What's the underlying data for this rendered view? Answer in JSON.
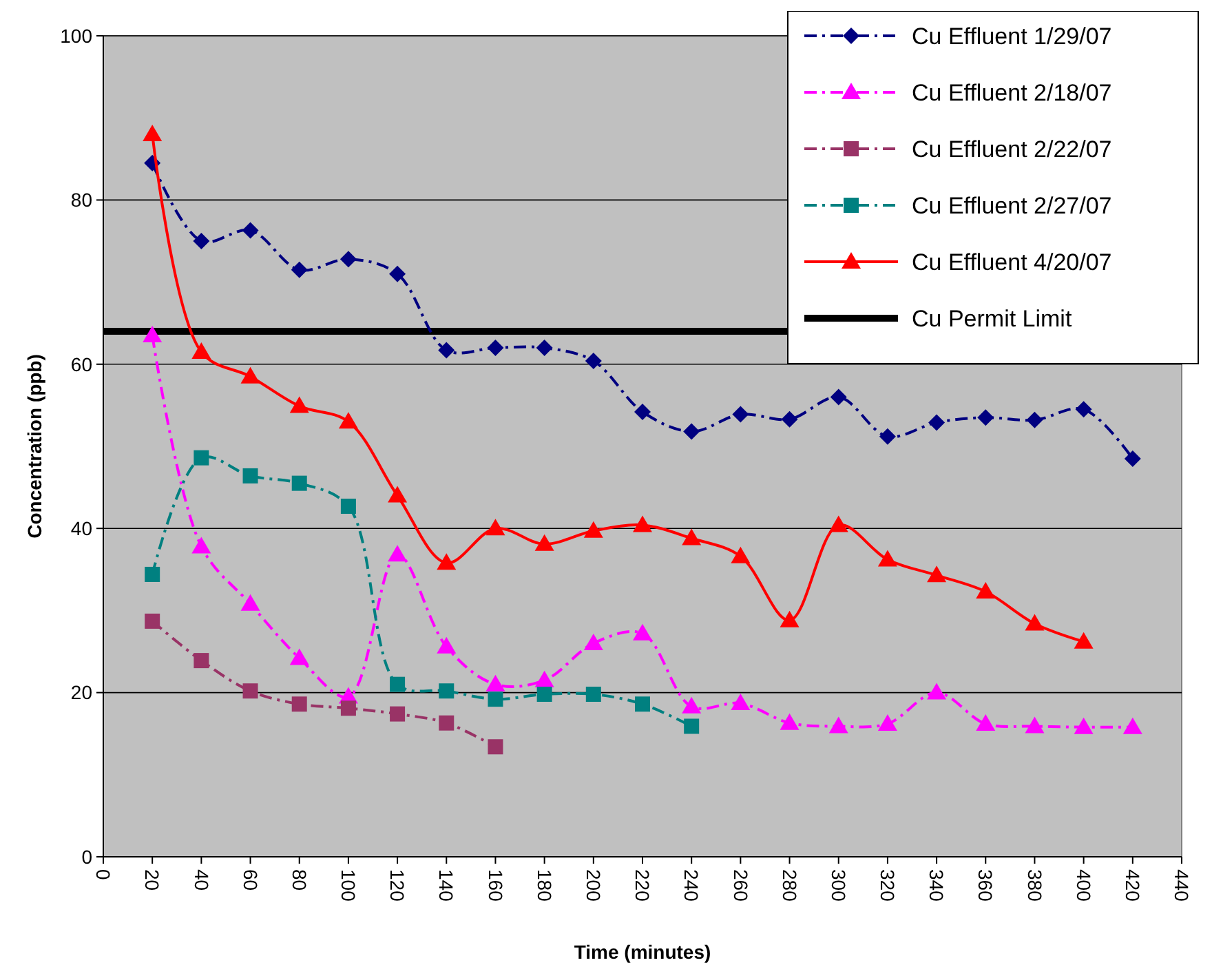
{
  "chart_data": {
    "type": "line",
    "xlabel": "Time (minutes)",
    "ylabel": "Concentration (ppb)",
    "xlim": [
      0,
      440
    ],
    "xticks": [
      0,
      20,
      40,
      60,
      80,
      100,
      120,
      140,
      160,
      180,
      200,
      220,
      240,
      260,
      280,
      300,
      320,
      340,
      360,
      380,
      400,
      420,
      440
    ],
    "ylim": [
      0,
      100
    ],
    "yticks": [
      0,
      20,
      40,
      60,
      80,
      100
    ],
    "grid": "y",
    "legend": "top right",
    "series": [
      {
        "name": "Cu Effluent 1/29/07",
        "color": "#000080",
        "marker": "diamond",
        "line_style": "dashed",
        "x": [
          20,
          40,
          60,
          80,
          100,
          120,
          140,
          160,
          180,
          200,
          220,
          240,
          260,
          280,
          300,
          320,
          340,
          360,
          380,
          400,
          420
        ],
        "values": [
          84.5,
          75,
          76.3,
          71.5,
          72.8,
          71,
          61.7,
          62,
          62,
          60.4,
          54.2,
          51.8,
          53.9,
          53.3,
          56,
          51.2,
          52.9,
          53.5,
          53.2,
          54.5,
          48.5
        ]
      },
      {
        "name": "Cu Effluent 2/18/07",
        "color": "#ff00ff",
        "marker": "triangle",
        "line_style": "dashed",
        "x": [
          20,
          40,
          60,
          80,
          100,
          120,
          140,
          160,
          180,
          200,
          220,
          240,
          260,
          280,
          300,
          320,
          340,
          360,
          380,
          400,
          420
        ],
        "values": [
          63.5,
          37.8,
          30.8,
          24.2,
          19.5,
          36.8,
          25.6,
          21,
          21.5,
          26,
          27.2,
          18.3,
          18.7,
          16.3,
          15.9,
          16.2,
          20,
          16.2,
          15.9,
          15.8,
          15.8
        ]
      },
      {
        "name": "Cu Effluent 2/22/07",
        "color": "#993366",
        "marker": "square",
        "line_style": "dashed",
        "x": [
          20,
          40,
          60,
          80,
          100,
          120,
          140,
          160
        ],
        "values": [
          28.7,
          23.9,
          20.2,
          18.6,
          18.1,
          17.4,
          16.3,
          13.4
        ]
      },
      {
        "name": "Cu Effluent 2/27/07",
        "color": "#008080",
        "marker": "square",
        "line_style": "dashed",
        "x": [
          20,
          40,
          60,
          80,
          100,
          120,
          140,
          160,
          180,
          200,
          220,
          240
        ],
        "values": [
          34.4,
          48.6,
          46.4,
          45.5,
          42.7,
          21,
          20.2,
          19.2,
          19.8,
          19.8,
          18.6,
          15.9
        ]
      },
      {
        "name": "Cu Effluent 4/20/07",
        "color": "#ff0000",
        "marker": "triangle",
        "line_style": "solid",
        "x": [
          20,
          40,
          60,
          80,
          100,
          120,
          140,
          160,
          180,
          200,
          220,
          240,
          260,
          280,
          300,
          320,
          340,
          360,
          380,
          400
        ],
        "values": [
          88,
          61.5,
          58.5,
          54.9,
          53,
          44,
          35.8,
          40,
          38.1,
          39.7,
          40.4,
          38.8,
          36.6,
          28.8,
          40.4,
          36.2,
          34.3,
          32.3,
          28.4,
          26.2
        ]
      }
    ],
    "ref_lines": [
      {
        "axis": "y",
        "value": 64,
        "label": "Cu Permit Limit",
        "color": "#000000",
        "line_style": "solid"
      }
    ]
  }
}
